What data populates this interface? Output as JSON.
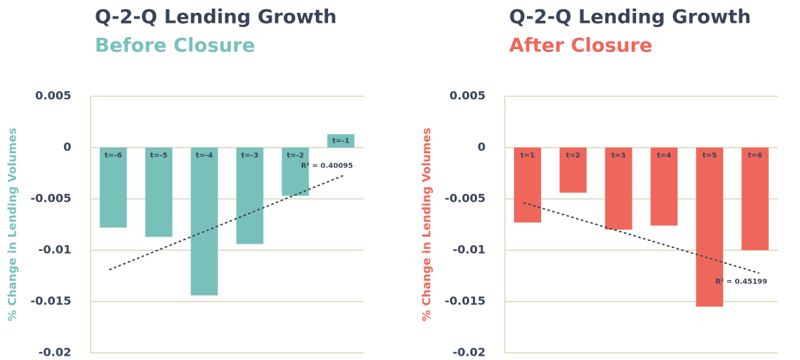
{
  "chart_data": [
    {
      "type": "bar",
      "title": "Q-2-Q Lending Growth",
      "subtitle": "Before Closure",
      "ylabel": "% Change in Lending Volumes",
      "categories": [
        "t=-6",
        "t=-5",
        "t=-4",
        "t=-3",
        "t=-2",
        "t=-1"
      ],
      "values": [
        -0.0078,
        -0.0087,
        -0.0144,
        -0.0094,
        -0.0047,
        0.0013
      ],
      "color": "#78c1bb",
      "ylim": [
        -0.02,
        0.005
      ],
      "yticks": [
        0.005,
        0,
        -0.005,
        -0.01,
        -0.015,
        -0.02
      ],
      "grid": true,
      "trendline": "linear",
      "annotation": "R² = 0.40095"
    },
    {
      "type": "bar",
      "title": "Q-2-Q Lending Growth",
      "subtitle": "After Closure",
      "ylabel": "% Change in Lending Volumes",
      "categories": [
        "t=1",
        "t=2",
        "t=3",
        "t=4",
        "t=5",
        "t=6"
      ],
      "values": [
        -0.0073,
        -0.0044,
        -0.008,
        -0.0076,
        -0.0155,
        -0.01
      ],
      "color": "#ef675b",
      "ylim": [
        -0.02,
        0.005
      ],
      "yticks": [
        0.005,
        0,
        -0.005,
        -0.01,
        -0.015,
        -0.02
      ],
      "grid": true,
      "trendline": "linear",
      "annotation": "R² = 0.45199"
    }
  ]
}
